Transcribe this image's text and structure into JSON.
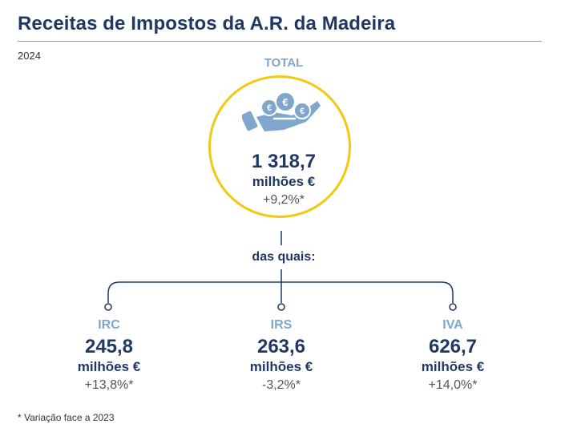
{
  "title": "Receitas de Impostos da A.R. da Madeira",
  "year": "2024",
  "total": {
    "label": "TOTAL",
    "value": "1 318,7",
    "unit": "milhões €",
    "change": "+9,2%*",
    "icon": "hand-with-euro-coins-icon"
  },
  "connector_label": "das quais:",
  "categories": [
    {
      "label": "IRC",
      "value": "245,8",
      "unit": "milhões €",
      "change": "+13,8%*"
    },
    {
      "label": "IRS",
      "value": "263,6",
      "unit": "milhões €",
      "change": "-3,2%*"
    },
    {
      "label": "IVA",
      "value": "626,7",
      "unit": "milhões €",
      "change": "+14,0%*"
    }
  ],
  "footnote": "* Variação face a 2023",
  "colors": {
    "title": "#1f3864",
    "accent_label": "#7fa7cc",
    "circle": "#f2c811",
    "connector": "#1f3864"
  }
}
